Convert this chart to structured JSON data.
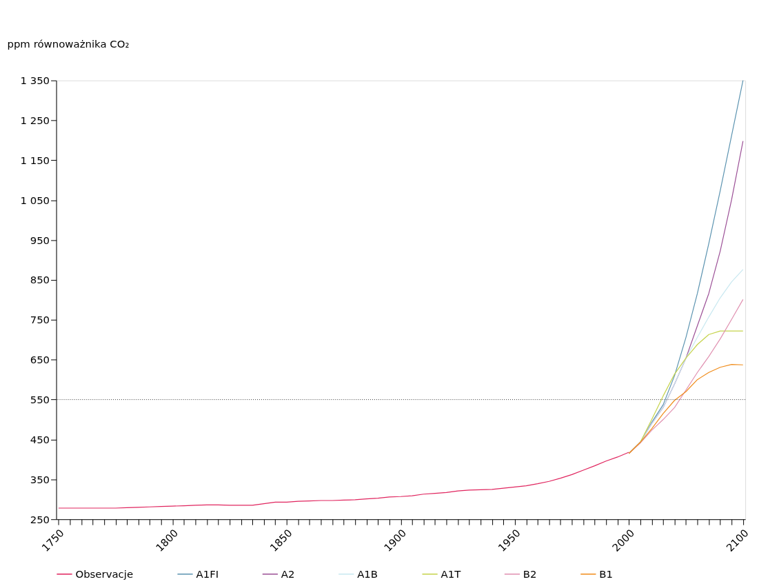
{
  "chart_data": {
    "type": "line",
    "ylabel": "ppm równoważnika CO₂",
    "categories": [
      "1750",
      null,
      null,
      null,
      null,
      null,
      null,
      null,
      null,
      null,
      "1800",
      null,
      null,
      null,
      null,
      null,
      null,
      null,
      null,
      null,
      "1850",
      null,
      null,
      null,
      null,
      null,
      null,
      null,
      null,
      null,
      "1900",
      null,
      null,
      null,
      null,
      null,
      null,
      null,
      null,
      null,
      "1950",
      null,
      null,
      null,
      null,
      null,
      null,
      null,
      null,
      null,
      "2000",
      null,
      null,
      null,
      null,
      null,
      null,
      null,
      null,
      null,
      "2100"
    ],
    "series": [
      {
        "name": "Observacje",
        "color": "#e0245e",
        "values": [
          278,
          278,
          278,
          278,
          278,
          278,
          279,
          280,
          281,
          282,
          283,
          284,
          285,
          286,
          286,
          285,
          285,
          285,
          289,
          293,
          293,
          295,
          296,
          297,
          297,
          298,
          299,
          301,
          303,
          306,
          307,
          309,
          313,
          315,
          317,
          321,
          323,
          324,
          325,
          328,
          331,
          334,
          339,
          345,
          353,
          362,
          373,
          384,
          396,
          406,
          418,
          null,
          null,
          null,
          null,
          null,
          null,
          null,
          null,
          null,
          null
        ]
      },
      {
        "name": "A1FI",
        "color": "#5b93b0",
        "values": [
          null,
          null,
          null,
          null,
          null,
          null,
          null,
          null,
          null,
          null,
          null,
          null,
          null,
          null,
          null,
          null,
          null,
          null,
          null,
          null,
          null,
          null,
          null,
          null,
          null,
          null,
          null,
          null,
          null,
          null,
          null,
          null,
          null,
          null,
          null,
          null,
          null,
          null,
          null,
          null,
          null,
          null,
          null,
          null,
          null,
          null,
          null,
          null,
          null,
          null,
          415,
          443,
          493,
          537,
          610,
          706,
          816,
          941,
          1073,
          1212,
          1350
        ]
      },
      {
        "name": "A2",
        "color": "#9b4f96",
        "values": [
          null,
          null,
          null,
          null,
          null,
          null,
          null,
          null,
          null,
          null,
          null,
          null,
          null,
          null,
          null,
          null,
          null,
          null,
          null,
          null,
          null,
          null,
          null,
          null,
          null,
          null,
          null,
          null,
          null,
          null,
          null,
          null,
          null,
          null,
          null,
          null,
          null,
          null,
          null,
          null,
          null,
          null,
          null,
          null,
          null,
          null,
          null,
          null,
          null,
          null,
          415,
          443,
          490,
          530,
          589,
          654,
          735,
          816,
          922,
          1051,
          1198
        ]
      },
      {
        "name": "A1B",
        "color": "#c8e8f0",
        "values": [
          null,
          null,
          null,
          null,
          null,
          null,
          null,
          null,
          null,
          null,
          null,
          null,
          null,
          null,
          null,
          null,
          null,
          null,
          null,
          null,
          null,
          null,
          null,
          null,
          null,
          null,
          null,
          null,
          null,
          null,
          null,
          null,
          null,
          null,
          null,
          null,
          null,
          null,
          null,
          null,
          null,
          null,
          null,
          null,
          null,
          null,
          null,
          null,
          null,
          null,
          415,
          443,
          490,
          530,
          589,
          654,
          706,
          757,
          805,
          845,
          876
        ]
      },
      {
        "name": "A1T",
        "color": "#c5d34a",
        "values": [
          null,
          null,
          null,
          null,
          null,
          null,
          null,
          null,
          null,
          null,
          null,
          null,
          null,
          null,
          null,
          null,
          null,
          null,
          null,
          null,
          null,
          null,
          null,
          null,
          null,
          null,
          null,
          null,
          null,
          null,
          null,
          null,
          null,
          null,
          null,
          null,
          null,
          null,
          null,
          null,
          null,
          null,
          null,
          null,
          null,
          null,
          null,
          null,
          null,
          null,
          415,
          443,
          500,
          559,
          614,
          654,
          688,
          713,
          722,
          722,
          722
        ]
      },
      {
        "name": "B2",
        "color": "#e090b0",
        "values": [
          null,
          null,
          null,
          null,
          null,
          null,
          null,
          null,
          null,
          null,
          null,
          null,
          null,
          null,
          null,
          null,
          null,
          null,
          null,
          null,
          null,
          null,
          null,
          null,
          null,
          null,
          null,
          null,
          null,
          null,
          null,
          null,
          null,
          null,
          null,
          null,
          null,
          null,
          null,
          null,
          null,
          null,
          null,
          null,
          null,
          null,
          null,
          null,
          null,
          null,
          415,
          441,
          473,
          500,
          530,
          574,
          618,
          658,
          702,
          751,
          801
        ]
      },
      {
        "name": "B1",
        "color": "#f08c1a",
        "values": [
          null,
          null,
          null,
          null,
          null,
          null,
          null,
          null,
          null,
          null,
          null,
          null,
          null,
          null,
          null,
          null,
          null,
          null,
          null,
          null,
          null,
          null,
          null,
          null,
          null,
          null,
          null,
          null,
          null,
          null,
          null,
          null,
          null,
          null,
          null,
          null,
          null,
          null,
          null,
          null,
          null,
          null,
          null,
          null,
          null,
          null,
          null,
          null,
          null,
          null,
          415,
          443,
          477,
          515,
          548,
          570,
          600,
          618,
          631,
          638,
          637
        ]
      }
    ],
    "ylim": [
      250,
      1350
    ],
    "yticks": [
      250,
      350,
      450,
      550,
      650,
      750,
      850,
      950,
      {
        "value": 1050,
        "label": "1 050"
      },
      {
        "value": 1150,
        "label": "1 150"
      },
      {
        "value": 1250,
        "label": "1 250"
      },
      {
        "value": 1350,
        "label": "1 350"
      }
    ],
    "ref_lines": [
      {
        "axis": "y",
        "value": 550,
        "color": "#333333",
        "line_style": "dotted"
      }
    ],
    "grid": false,
    "legend": "bottom",
    "line_style": "solid",
    "marker": "none"
  }
}
